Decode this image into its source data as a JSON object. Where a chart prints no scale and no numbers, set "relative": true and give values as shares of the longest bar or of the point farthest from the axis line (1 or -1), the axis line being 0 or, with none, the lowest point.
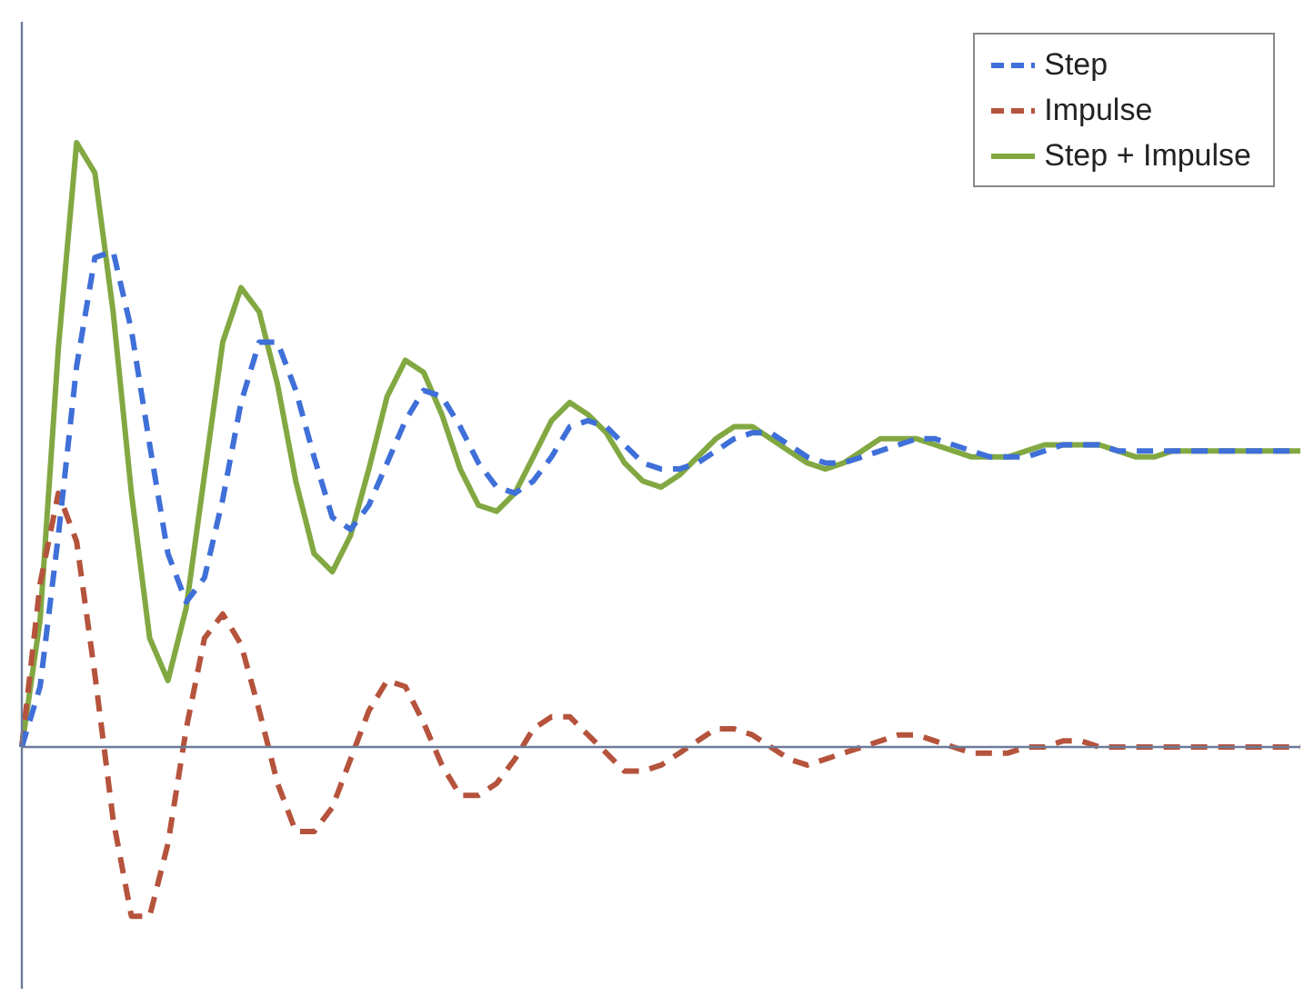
{
  "chart_data": {
    "type": "line",
    "relative": true,
    "legend": "top right",
    "marker": "none",
    "ref_lines": [
      {
        "axis": "y",
        "value": 0,
        "color": "#6b7b99"
      }
    ],
    "categories": [
      null,
      null,
      null,
      null,
      null,
      null,
      null,
      null,
      null,
      null,
      null,
      null,
      null,
      null,
      null,
      null,
      null,
      null,
      null,
      null,
      null,
      null,
      null,
      null,
      null,
      null,
      null,
      null,
      null,
      null,
      null,
      null,
      null,
      null,
      null,
      null,
      null,
      null,
      null,
      null,
      null,
      null,
      null,
      null,
      null,
      null,
      null,
      null,
      null,
      null,
      null,
      null,
      null,
      null,
      null,
      null,
      null,
      null,
      null,
      null,
      null,
      null,
      null,
      null,
      null,
      null,
      null,
      null,
      null,
      null,
      null
    ],
    "series": [
      {
        "name": "Step",
        "color": "#3f6fd8",
        "line_style": "dashed",
        "values": [
          0,
          0.1,
          0.35,
          0.63,
          0.81,
          0.82,
          0.69,
          0.5,
          0.32,
          0.24,
          0.28,
          0.41,
          0.57,
          0.67,
          0.67,
          0.59,
          0.48,
          0.38,
          0.36,
          0.4,
          0.47,
          0.54,
          0.59,
          0.58,
          0.53,
          0.47,
          0.43,
          0.42,
          0.44,
          0.48,
          0.53,
          0.54,
          0.53,
          0.5,
          0.47,
          0.46,
          0.46,
          0.47,
          0.49,
          0.51,
          0.52,
          0.52,
          0.5,
          0.48,
          0.47,
          0.47,
          0.48,
          0.49,
          0.5,
          0.51,
          0.51,
          0.5,
          0.49,
          0.48,
          0.48,
          0.48,
          0.49,
          0.5,
          0.5,
          0.5,
          0.49,
          0.49,
          0.49,
          0.49,
          0.49,
          0.49,
          0.49,
          0.49,
          0.49,
          0.49,
          0.49
        ]
      },
      {
        "name": "Impulse",
        "color": "#b5533c",
        "line_style": "dashed",
        "values": [
          0,
          0.27,
          0.42,
          0.34,
          0.12,
          -0.12,
          -0.28,
          -0.28,
          -0.16,
          0.03,
          0.18,
          0.22,
          0.17,
          0.06,
          -0.06,
          -0.14,
          -0.14,
          -0.1,
          -0.02,
          0.06,
          0.11,
          0.1,
          0.04,
          -0.03,
          -0.08,
          -0.08,
          -0.06,
          -0.02,
          0.03,
          0.05,
          0.05,
          0.02,
          -0.01,
          -0.04,
          -0.04,
          -0.03,
          -0.01,
          0.01,
          0.03,
          0.03,
          0.02,
          0,
          -0.02,
          -0.03,
          -0.02,
          -0.01,
          0,
          0.01,
          0.02,
          0.02,
          0.01,
          0,
          -0.01,
          -0.01,
          -0.01,
          0,
          0,
          0.01,
          0.01,
          0,
          0,
          0,
          0,
          0,
          0,
          0,
          0,
          0,
          0,
          0,
          0
        ]
      },
      {
        "name": "Step + Impulse",
        "color": "#82a842",
        "line_style": "solid",
        "values": [
          0,
          0.21,
          0.66,
          1,
          0.95,
          0.72,
          0.42,
          0.18,
          0.11,
          0.23,
          0.45,
          0.67,
          0.76,
          0.72,
          0.6,
          0.44,
          0.32,
          0.29,
          0.35,
          0.46,
          0.58,
          0.64,
          0.62,
          0.55,
          0.46,
          0.4,
          0.39,
          0.42,
          0.48,
          0.54,
          0.57,
          0.55,
          0.52,
          0.47,
          0.44,
          0.43,
          0.45,
          0.48,
          0.51,
          0.53,
          0.53,
          0.51,
          0.49,
          0.47,
          0.46,
          0.47,
          0.49,
          0.51,
          0.51,
          0.51,
          0.5,
          0.49,
          0.48,
          0.48,
          0.48,
          0.49,
          0.5,
          0.5,
          0.5,
          0.5,
          0.49,
          0.48,
          0.48,
          0.49,
          0.49,
          0.49,
          0.49,
          0.49,
          0.49,
          0.49,
          0.49
        ]
      }
    ]
  }
}
